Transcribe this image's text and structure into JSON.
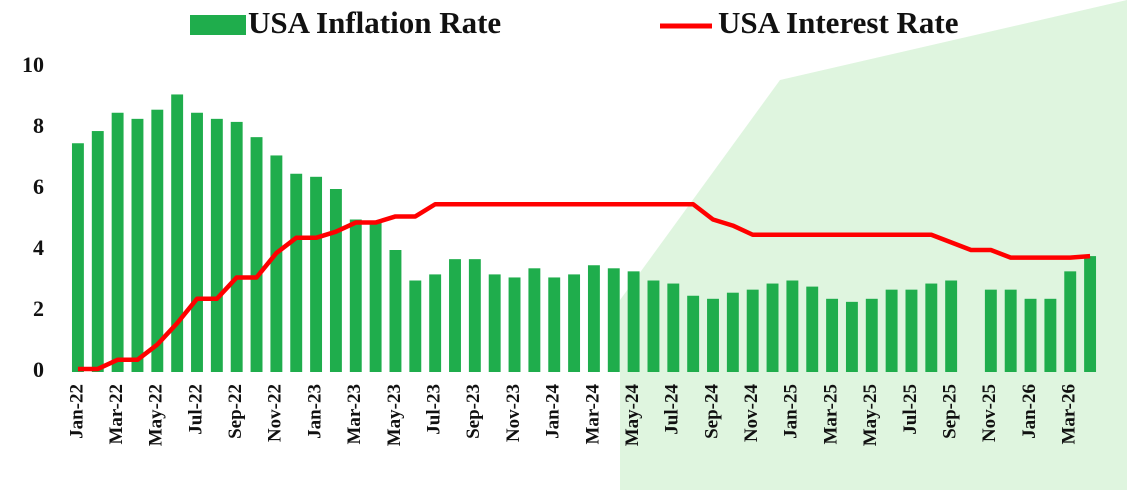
{
  "chart_data": {
    "type": "bar_line",
    "categories": [
      "Jan-22",
      null,
      "Mar-22",
      null,
      "May-22",
      null,
      "Jul-22",
      null,
      "Sep-22",
      null,
      "Nov-22",
      null,
      "Jan-23",
      null,
      "Mar-23",
      null,
      "May-23",
      null,
      "Jul-23",
      null,
      "Sep-23",
      null,
      "Nov-23",
      null,
      "Jan-24",
      null,
      "Mar-24",
      null,
      "May-24",
      null,
      "Jul-24",
      null,
      "Sep-24",
      null,
      "Nov-24",
      null,
      "Jan-25",
      null,
      "Mar-25",
      null,
      "May-25",
      null,
      "Jul-25",
      null,
      "Sep-25",
      null,
      "Nov-25",
      null,
      "Jan-26",
      null,
      "Mar-26",
      null
    ],
    "series": [
      {
        "name": "USA Inflation Rate",
        "color": "#1fad4c",
        "kind": "bar",
        "values": [
          7.5,
          7.9,
          8.5,
          8.3,
          8.6,
          9.1,
          8.5,
          8.3,
          8.2,
          7.7,
          7.1,
          6.5,
          6.4,
          6.0,
          5.0,
          4.9,
          4.0,
          3.0,
          3.2,
          3.7,
          3.7,
          3.2,
          3.1,
          3.4,
          3.1,
          3.2,
          3.5,
          3.4,
          3.3,
          3.0,
          2.9,
          2.5,
          2.4,
          2.6,
          2.7,
          2.9,
          3.0,
          2.8,
          2.4,
          2.3,
          2.4,
          2.7,
          2.7,
          2.9,
          3.0,
          null,
          2.7,
          2.7,
          2.4,
          2.4,
          3.3,
          3.8
        ]
      },
      {
        "name": "USA Interest Rate",
        "color": "#ff0000",
        "kind": "line",
        "values": [
          0.1,
          0.1,
          0.4,
          0.4,
          0.9,
          1.6,
          2.4,
          2.4,
          3.1,
          3.1,
          3.9,
          4.4,
          4.4,
          4.6,
          4.9,
          4.9,
          5.1,
          5.1,
          5.5,
          5.5,
          5.5,
          5.5,
          5.5,
          5.5,
          5.5,
          5.5,
          5.5,
          5.5,
          5.5,
          5.5,
          5.5,
          5.5,
          5.0,
          4.8,
          4.5,
          4.5,
          4.5,
          4.5,
          4.5,
          4.5,
          4.5,
          4.5,
          4.5,
          4.5,
          4.25,
          4.0,
          4.0,
          3.75,
          3.75,
          3.75,
          3.75,
          3.8
        ]
      }
    ],
    "ylim": [
      0,
      10
    ],
    "yticks": [
      0,
      2,
      4,
      6,
      8,
      10
    ],
    "grid": false
  }
}
